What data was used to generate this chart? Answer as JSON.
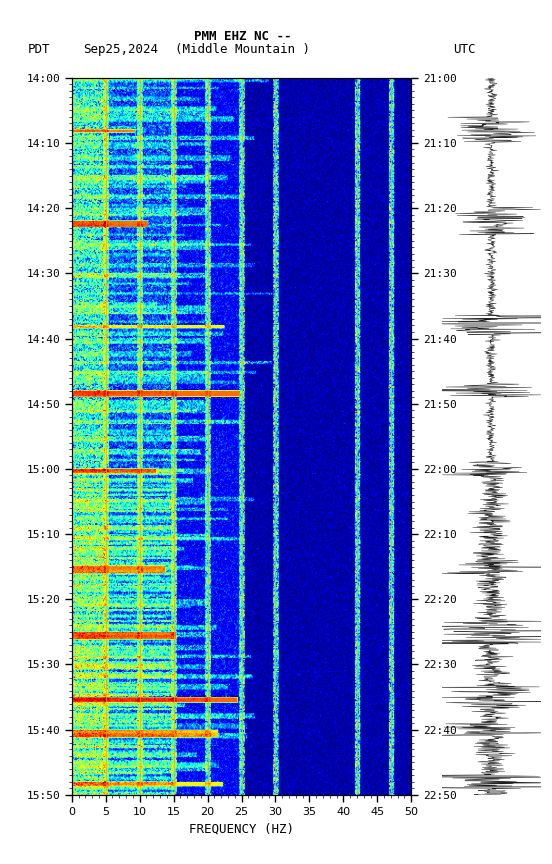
{
  "title_line1": "PMM EHZ NC --",
  "title_line2": "(Middle Mountain )",
  "label_left": "PDT",
  "label_date": "Sep25,2024",
  "label_right": "UTC",
  "freq_min": 0,
  "freq_max": 50,
  "freq_xlabel": "FREQUENCY (HZ)",
  "pdt_times": [
    "14:00",
    "14:10",
    "14:20",
    "14:30",
    "14:40",
    "14:50",
    "15:00",
    "15:10",
    "15:20",
    "15:30",
    "15:40",
    "15:50"
  ],
  "utc_times": [
    "21:00",
    "21:10",
    "21:20",
    "21:30",
    "21:40",
    "21:50",
    "22:00",
    "22:10",
    "22:20",
    "22:30",
    "22:40",
    "22:50"
  ],
  "tick_minutes": [
    0,
    10,
    20,
    30,
    40,
    50,
    60,
    70,
    80,
    90,
    100,
    110
  ],
  "vertical_lines_hz": [
    5,
    10,
    15,
    20,
    25,
    30,
    42,
    47
  ],
  "colormap": "jet",
  "fig_width": 5.52,
  "fig_height": 8.64,
  "dpi": 100,
  "total_minutes": 110
}
